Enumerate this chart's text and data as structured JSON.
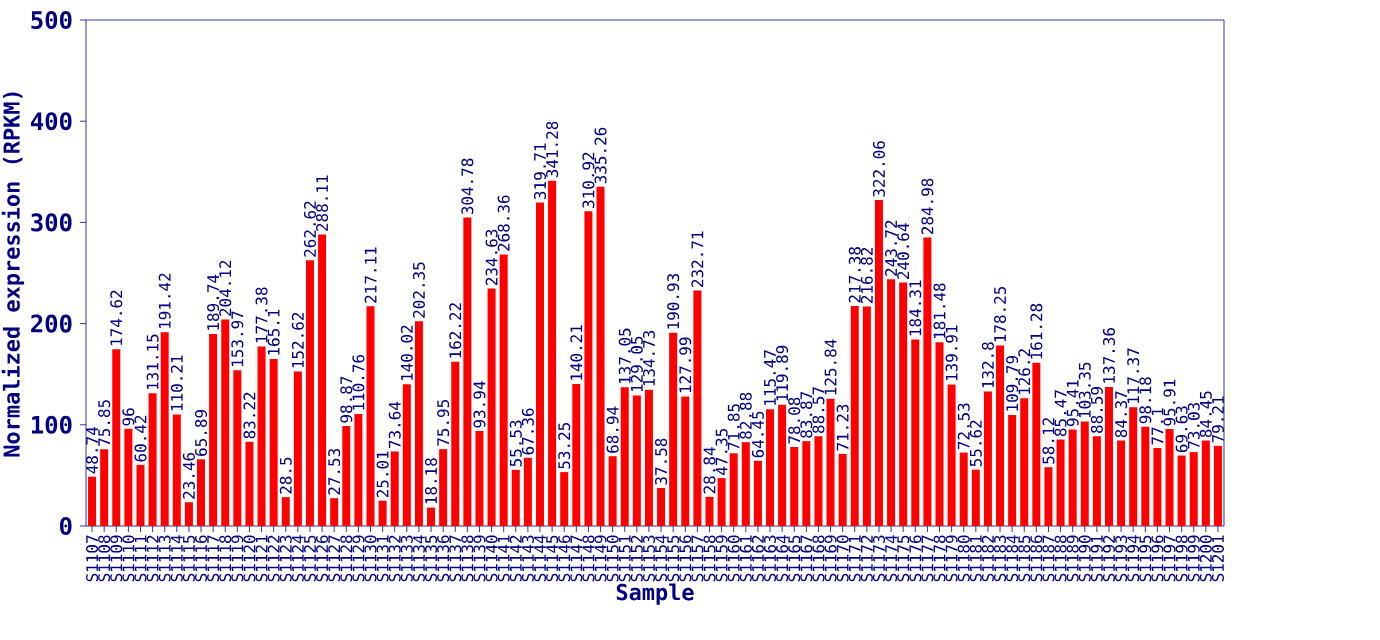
{
  "chart_data": {
    "type": "bar",
    "xlabel": "Sample",
    "ylabel": "Normalized expression (RPKM)",
    "categories": [
      "S1107",
      "S1108",
      "S1109",
      "S1110",
      "S1111",
      "S1112",
      "S1113",
      "S1114",
      "S1115",
      "S1116",
      "S1117",
      "S1118",
      "S1119",
      "S1120",
      "S1121",
      "S1122",
      "S1123",
      "S1124",
      "S1125",
      "S1126",
      "S1127",
      "S1128",
      "S1129",
      "S1130",
      "S1131",
      "S1132",
      "S1133",
      "S1134",
      "S1135",
      "S1136",
      "S1137",
      "S1138",
      "S1139",
      "S1140",
      "S1141",
      "S1142",
      "S1143",
      "S1144",
      "S1145",
      "S1146",
      "S1147",
      "S1148",
      "S1149",
      "S1150",
      "S1151",
      "S1152",
      "S1153",
      "S1154",
      "S1155",
      "S1156",
      "S1157",
      "S1158",
      "S1159",
      "S1160",
      "S1161",
      "S1162",
      "S1163",
      "S1164",
      "S1165",
      "S1167",
      "S1168",
      "S1169",
      "S1170",
      "S1171",
      "S1172",
      "S1173",
      "S1174",
      "S1175",
      "S1176",
      "S1177",
      "S1178",
      "S1179",
      "S1180",
      "S1181",
      "S1182",
      "S1183",
      "S1184",
      "S1185",
      "S1186",
      "S1187",
      "S1188",
      "S1189",
      "S1190",
      "S1191",
      "S1192",
      "S1193",
      "S1194",
      "S1195",
      "S1196",
      "S1197",
      "S1198",
      "S1199",
      "S1200",
      "S1201"
    ],
    "values": [
      48.74,
      75.85,
      174.62,
      96,
      60.42,
      131.15,
      191.42,
      110.21,
      23.46,
      65.89,
      189.74,
      204.12,
      153.97,
      83.22,
      177.38,
      165.1,
      28.5,
      152.62,
      262.62,
      288.11,
      27.53,
      98.87,
      110.76,
      217.11,
      25.01,
      73.64,
      140.02,
      202.35,
      18.18,
      75.95,
      162.22,
      304.78,
      93.94,
      234.63,
      268.36,
      55.53,
      67.36,
      319.71,
      341.28,
      53.25,
      140.21,
      310.92,
      335.26,
      68.94,
      137.05,
      129.05,
      134.73,
      37.58,
      190.93,
      127.99,
      232.71,
      28.84,
      47.35,
      71.85,
      82.88,
      64.45,
      115.47,
      119.89,
      78.08,
      83.87,
      88.57,
      125.84,
      71.23,
      217.38,
      216.82,
      322.06,
      243.72,
      240.64,
      184.31,
      284.98,
      181.48,
      139.91,
      72.53,
      55.62,
      132.8,
      178.25,
      109.79,
      126.2,
      161.28,
      58.12,
      85.47,
      95.41,
      103.35,
      88.59,
      137.36,
      84.37,
      117.37,
      98.18,
      77.1,
      95.91,
      69.63,
      73.03,
      84.45,
      79.21
    ],
    "color": "#ff0000",
    "data_labels": true,
    "ylim": [
      0,
      500
    ],
    "yticks": [
      0,
      100,
      200,
      300,
      400,
      500
    ]
  }
}
